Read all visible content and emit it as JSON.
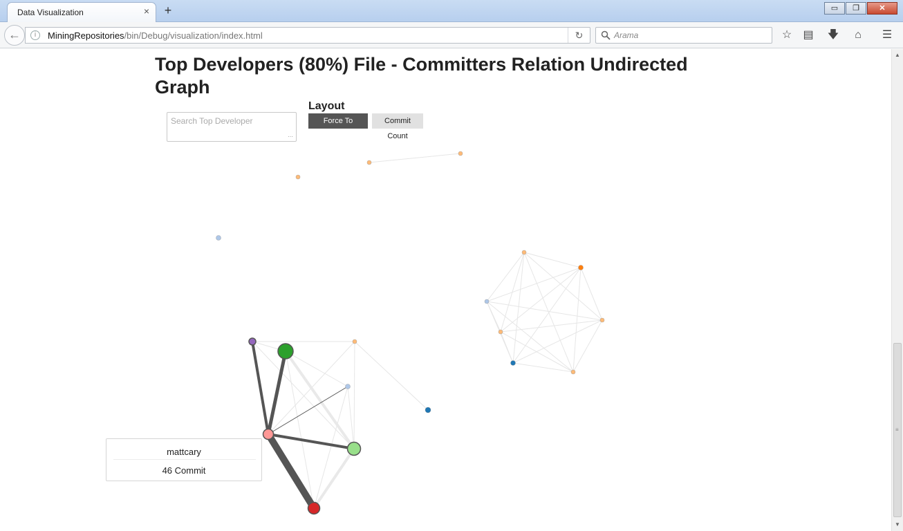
{
  "browser": {
    "tab_title": "Data Visualization",
    "tab_close": "×",
    "new_tab": "+",
    "url_host": "MiningRepositories",
    "url_path": "/bin/Debug/visualization/index.html",
    "search_placeholder": "Arama",
    "window_controls": {
      "minimize": "▭",
      "restore": "❐",
      "close": "✕"
    }
  },
  "page": {
    "title": "Top Developers (80%) File - Committers Relation Undirected Graph",
    "search_placeholder": "Search Top Developer",
    "layout_label": "Layout",
    "buttons": {
      "force_to_center": "Force To Center",
      "commit_count": "Commit Count"
    },
    "active_layout": "Force To Center"
  },
  "tooltip": {
    "developer": "mattcary",
    "commits": "46 Commit"
  },
  "colors": {
    "edge_strong": "#555555",
    "edge_faint": "#e6e6e6",
    "node_stroke": "#555555",
    "button_active": "#555555",
    "button_inactive": "#e1e1e1"
  },
  "graph": {
    "nodes": [
      {
        "id": "n1",
        "color": "#ffbb78"
      },
      {
        "id": "n2",
        "color": "#ffbb78"
      },
      {
        "id": "n3",
        "color": "#ffbb78"
      },
      {
        "id": "n4",
        "color": "#aec7e8"
      },
      {
        "id": "n5",
        "color": "#ffbb78"
      },
      {
        "id": "n6",
        "color": "#ff7f0e"
      },
      {
        "id": "n7",
        "color": "#aec7e8"
      },
      {
        "id": "n8",
        "color": "#ffbb78"
      },
      {
        "id": "n9",
        "color": "#ffbb78"
      },
      {
        "id": "n10",
        "color": "#1f77b4"
      },
      {
        "id": "n11",
        "color": "#ffbb78"
      },
      {
        "id": "n12",
        "color": "#9467bd"
      },
      {
        "id": "n13",
        "color": "#2ca02c"
      },
      {
        "id": "n14",
        "color": "#ffbb78"
      },
      {
        "id": "n15",
        "color": "#aec7e8"
      },
      {
        "id": "n16",
        "color": "#1f77b4"
      },
      {
        "id": "n17",
        "color": "#ff9896",
        "label": "mattcary",
        "commits": 46
      },
      {
        "id": "n18",
        "color": "#98df8a"
      },
      {
        "id": "n19",
        "color": "#d62728"
      }
    ],
    "links": [
      {
        "source": "n1",
        "target": "n2",
        "strength": "faint"
      },
      {
        "source": "n5",
        "target": "n6",
        "strength": "faint"
      },
      {
        "source": "n5",
        "target": "n7",
        "strength": "faint"
      },
      {
        "source": "n5",
        "target": "n8",
        "strength": "faint"
      },
      {
        "source": "n5",
        "target": "n9",
        "strength": "faint"
      },
      {
        "source": "n5",
        "target": "n10",
        "strength": "faint"
      },
      {
        "source": "n5",
        "target": "n11",
        "strength": "faint"
      },
      {
        "source": "n6",
        "target": "n7",
        "strength": "faint"
      },
      {
        "source": "n6",
        "target": "n8",
        "strength": "faint"
      },
      {
        "source": "n6",
        "target": "n9",
        "strength": "faint"
      },
      {
        "source": "n6",
        "target": "n10",
        "strength": "faint"
      },
      {
        "source": "n6",
        "target": "n11",
        "strength": "faint"
      },
      {
        "source": "n7",
        "target": "n8",
        "strength": "faint"
      },
      {
        "source": "n7",
        "target": "n9",
        "strength": "faint"
      },
      {
        "source": "n7",
        "target": "n10",
        "strength": "faint"
      },
      {
        "source": "n7",
        "target": "n11",
        "strength": "faint"
      },
      {
        "source": "n8",
        "target": "n9",
        "strength": "faint"
      },
      {
        "source": "n8",
        "target": "n10",
        "strength": "faint"
      },
      {
        "source": "n8",
        "target": "n11",
        "strength": "faint"
      },
      {
        "source": "n9",
        "target": "n10",
        "strength": "faint"
      },
      {
        "source": "n9",
        "target": "n11",
        "strength": "faint"
      },
      {
        "source": "n10",
        "target": "n11",
        "strength": "faint"
      },
      {
        "source": "n12",
        "target": "n14",
        "strength": "faint"
      },
      {
        "source": "n13",
        "target": "n18",
        "strength": "medium"
      },
      {
        "source": "n13",
        "target": "n15",
        "strength": "faint"
      },
      {
        "source": "n14",
        "target": "n16",
        "strength": "faint"
      },
      {
        "source": "n14",
        "target": "n18",
        "strength": "faint"
      },
      {
        "source": "n15",
        "target": "n18",
        "strength": "faint"
      },
      {
        "source": "n15",
        "target": "n19",
        "strength": "faint"
      },
      {
        "source": "n18",
        "target": "n19",
        "strength": "medium"
      },
      {
        "source": "n13",
        "target": "n19",
        "strength": "faint"
      },
      {
        "source": "n17",
        "target": "n12",
        "strength": "strong",
        "weight": 4
      },
      {
        "source": "n17",
        "target": "n13",
        "strength": "strong",
        "weight": 5
      },
      {
        "source": "n17",
        "target": "n15",
        "strength": "strong",
        "weight": 1
      },
      {
        "source": "n17",
        "target": "n18",
        "strength": "strong",
        "weight": 4
      },
      {
        "source": "n17",
        "target": "n19",
        "strength": "strong",
        "weight": 10
      }
    ]
  }
}
